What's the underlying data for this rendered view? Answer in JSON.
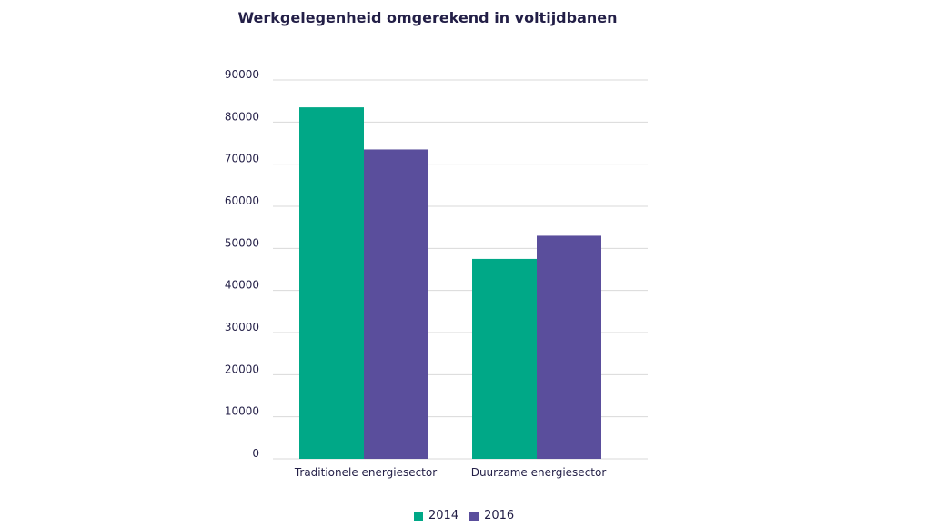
{
  "chart_data": {
    "type": "bar",
    "title": "Werkgelegenheid omgerekend in voltijdbanen",
    "categories": [
      "Traditionele energiesector",
      "Duurzame energiesector"
    ],
    "series": [
      {
        "name": "2014",
        "values": [
          83500,
          47500
        ],
        "color": "#00a887"
      },
      {
        "name": "2016",
        "values": [
          73500,
          53000
        ],
        "color": "#5a4e9c"
      }
    ],
    "y_ticks": [
      0,
      10000,
      20000,
      30000,
      40000,
      50000,
      60000,
      70000,
      80000,
      90000
    ],
    "ylim": [
      0,
      90000
    ],
    "grid": true,
    "legend_position": "bottom-center"
  }
}
